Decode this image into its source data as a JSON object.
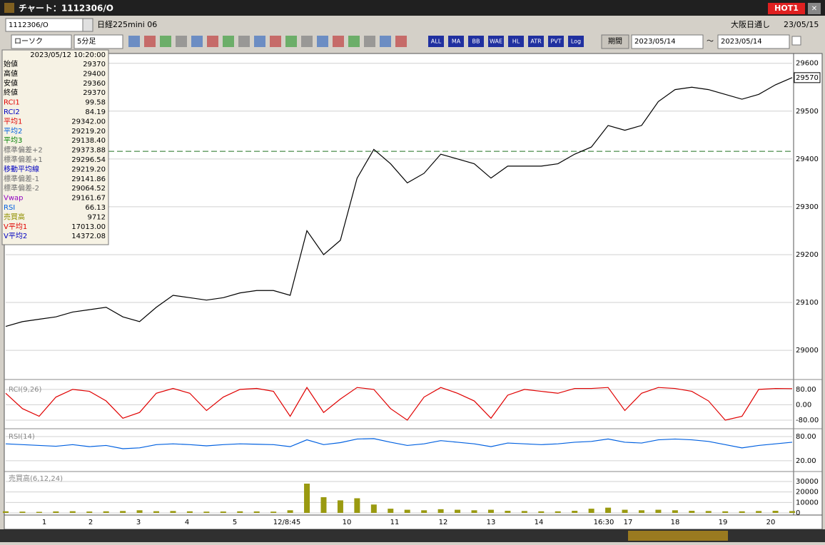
{
  "window": {
    "title": "チャート：1112306/O",
    "hot_button": "HOT1",
    "close": "✕"
  },
  "toolbar": {
    "symbol": "1112306/O",
    "name": "日経225mini 06",
    "market": "大阪日通し",
    "date": "23/05/15",
    "chart_style": "ローソク",
    "interval": "5分足",
    "period_button": "期間",
    "from": "2023/05/14",
    "tilde": "～",
    "to": "2023/05/14",
    "icon_labels": [
      "ALL",
      "MA",
      "BB",
      "WAE",
      "HL",
      "ATR",
      "PVT",
      "Log"
    ]
  },
  "info_panel": {
    "datetime": "2023/05/12 10:20:00",
    "rows": [
      {
        "label": "始値",
        "value": "29370",
        "color": "#000000"
      },
      {
        "label": "高値",
        "value": "29400",
        "color": "#000000"
      },
      {
        "label": "安値",
        "value": "29360",
        "color": "#000000"
      },
      {
        "label": "終値",
        "value": "29370",
        "color": "#000000"
      },
      {
        "label": "RCI1",
        "value": "99.58",
        "color": "#e00000"
      },
      {
        "label": "RCI2",
        "value": "84.19",
        "color": "#0000c0"
      },
      {
        "label": "平均1",
        "value": "29342.00",
        "color": "#e00000"
      },
      {
        "label": "平均2",
        "value": "29219.20",
        "color": "#0060e0"
      },
      {
        "label": "平均3",
        "value": "29138.40",
        "color": "#008000"
      },
      {
        "label": "標準偏差+2",
        "value": "29373.88",
        "color": "#707070"
      },
      {
        "label": "標準偏差+1",
        "value": "29296.54",
        "color": "#707070"
      },
      {
        "label": "移動平均線",
        "value": "29219.20",
        "color": "#0000c0"
      },
      {
        "label": "標準偏差-1",
        "value": "29141.86",
        "color": "#707070"
      },
      {
        "label": "標準偏差-2",
        "value": "29064.52",
        "color": "#707070"
      },
      {
        "label": "Vwap",
        "value": "29161.67",
        "color": "#9000c0"
      },
      {
        "label": "RSI",
        "value": "66.13",
        "color": "#0060e0"
      },
      {
        "label": "売買高",
        "value": "9712",
        "color": "#909000"
      },
      {
        "label": "V平均1",
        "value": "17013.00",
        "color": "#e00000"
      },
      {
        "label": "V平均2",
        "value": "14372.08",
        "color": "#0000c0"
      }
    ]
  },
  "time_axis": {
    "labels": [
      "1",
      "2",
      "3",
      "4",
      "5",
      "12/8:45",
      "10",
      "11",
      "12",
      "13",
      "14",
      "16:30",
      "17",
      "18",
      "19",
      "20"
    ]
  },
  "last_price": "29570",
  "chart_data": [
    {
      "type": "line",
      "color": "#000000",
      "ylim": [
        28942,
        29613
      ],
      "yticks": [
        29000,
        29100,
        29200,
        29300,
        29400,
        29500,
        29600
      ],
      "hline": 29416,
      "values": [
        29050,
        29060,
        29065,
        29070,
        29080,
        29085,
        29090,
        29070,
        29060,
        29090,
        29115,
        29110,
        29105,
        29110,
        29120,
        29125,
        29125,
        29115,
        29250,
        29200,
        29230,
        29360,
        29420,
        29390,
        29350,
        29370,
        29410,
        29400,
        29390,
        29360,
        29385,
        29385,
        29385,
        29390,
        29410,
        29425,
        29470,
        29460,
        29470,
        29520,
        29545,
        29550,
        29545,
        29535,
        29525,
        29535,
        29555,
        29570
      ]
    },
    {
      "type": "line",
      "title": "RCI(9,26)",
      "color": "#e00000",
      "ylim": [
        -121,
        113
      ],
      "yticks": [
        {
          "value": 80,
          "label": "80.00"
        },
        {
          "value": 0,
          "label": "0.00"
        },
        {
          "value": -80,
          "label": "-80.00"
        }
      ],
      "values": [
        60,
        -20,
        -60,
        40,
        80,
        70,
        20,
        -70,
        -40,
        60,
        85,
        60,
        -30,
        40,
        80,
        85,
        70,
        -60,
        90,
        -40,
        30,
        90,
        80,
        -20,
        -80,
        40,
        90,
        60,
        20,
        -70,
        50,
        80,
        70,
        60,
        85,
        85,
        90,
        -30,
        60,
        90,
        85,
        70,
        20,
        -80,
        -60,
        80,
        85,
        84
      ]
    },
    {
      "type": "line",
      "title": "RSI(14)",
      "color": "#0060e0",
      "ylim": [
        -5,
        96
      ],
      "yticks": [
        {
          "value": 80,
          "label": "80.00"
        },
        {
          "value": 20,
          "label": "20.00"
        }
      ],
      "values": [
        62,
        60,
        58,
        56,
        60,
        55,
        58,
        50,
        52,
        60,
        62,
        60,
        57,
        60,
        62,
        61,
        60,
        55,
        72,
        60,
        65,
        74,
        75,
        66,
        58,
        62,
        70,
        66,
        62,
        55,
        64,
        62,
        60,
        62,
        66,
        68,
        74,
        66,
        64,
        72,
        74,
        72,
        68,
        60,
        52,
        58,
        62,
        66
      ]
    },
    {
      "type": "bar",
      "title": "売買高(6,12,24)",
      "color": "#9a9a10",
      "ylim": [
        -700,
        38900
      ],
      "yticks": [
        30000,
        20000,
        10000,
        0
      ],
      "values": [
        1500,
        1200,
        1000,
        1400,
        1600,
        1300,
        1500,
        1800,
        2500,
        1600,
        1800,
        1500,
        1200,
        1300,
        1500,
        1400,
        1200,
        2500,
        28000,
        15000,
        12000,
        14000,
        8000,
        4000,
        3000,
        2500,
        3500,
        3000,
        2500,
        3000,
        2000,
        1800,
        1500,
        1500,
        2000,
        4000,
        5000,
        3000,
        2500,
        3000,
        2500,
        2000,
        1800,
        1500,
        1500,
        1800,
        2000,
        1700
      ]
    }
  ]
}
